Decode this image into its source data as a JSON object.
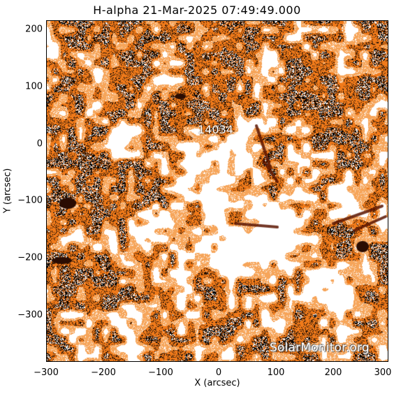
{
  "title": "H-alpha 21-Mar-2025 07:49:49.000",
  "axes": {
    "xlabel": "X (arcsec)",
    "ylabel": "Y (arcsec)",
    "x_ticks": [
      "−300",
      "−200",
      "−100",
      "0",
      "100",
      "200",
      "300"
    ],
    "y_ticks": [
      "200",
      "100",
      "0",
      "−100",
      "−200",
      "−300"
    ],
    "x_range": [
      -300,
      300
    ],
    "y_range": [
      -385,
      215
    ]
  },
  "image": {
    "colormap": "orange-white-black (H-alpha)",
    "colors": {
      "white": "#ffffff",
      "orange": "#f07a1a",
      "light_orange": "#f6a55a",
      "dark": "#2a1408",
      "black": "#000000"
    }
  },
  "region_label": "14034",
  "watermark": "SolarMonitor.org"
}
